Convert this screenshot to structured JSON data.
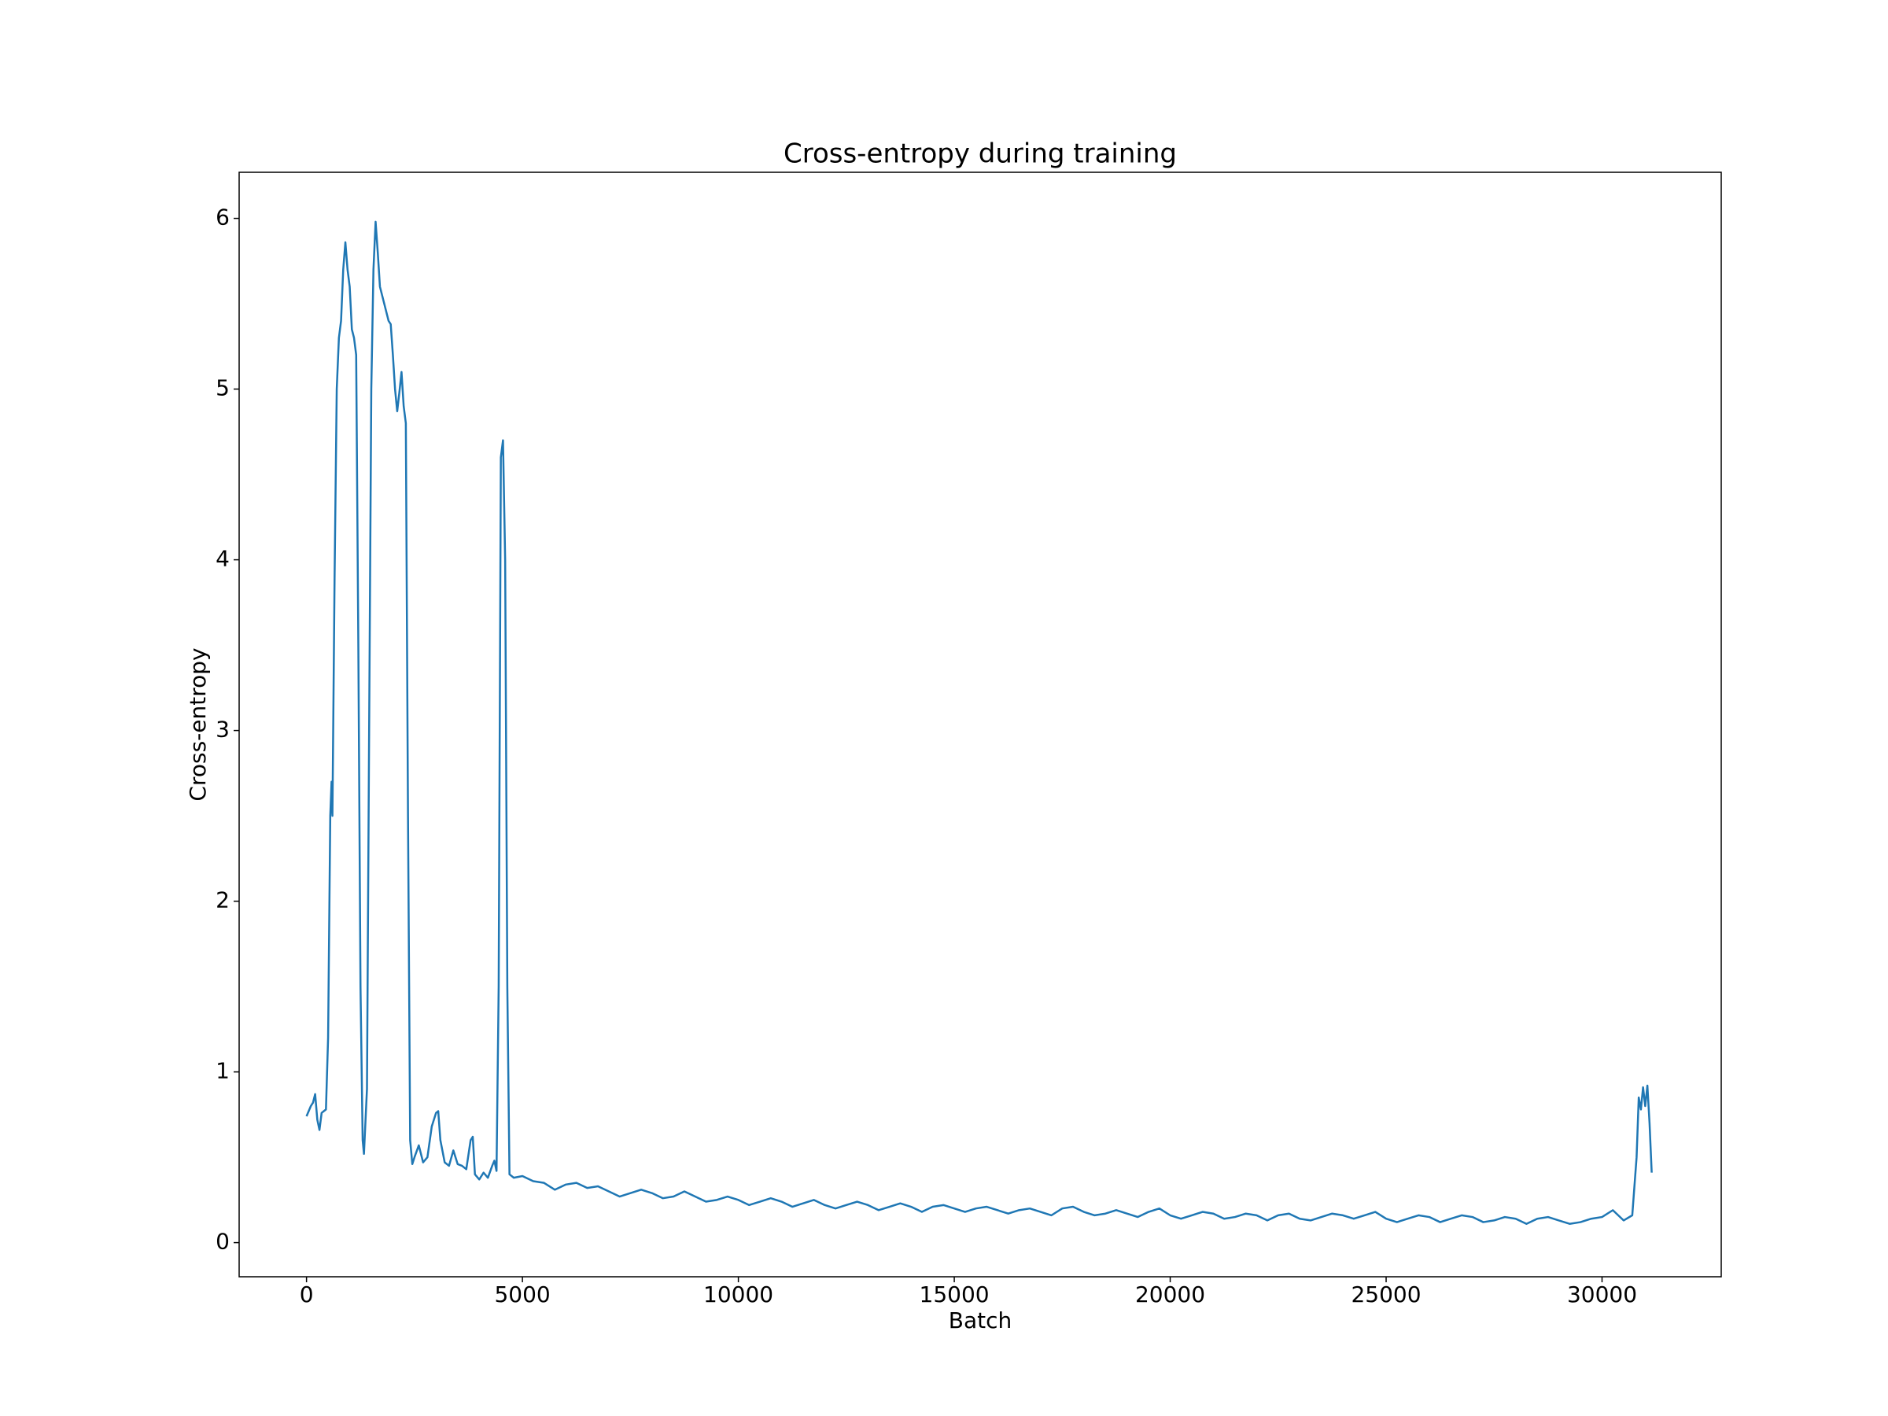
{
  "chart_data": {
    "type": "line",
    "title": "Cross-entropy during training",
    "x_label": "Batch",
    "y_label": "Cross-entropy",
    "color": "#1f77b4",
    "x": [
      0,
      100,
      150,
      200,
      250,
      300,
      350,
      400,
      450,
      500,
      550,
      580,
      600,
      650,
      700,
      750,
      800,
      850,
      900,
      950,
      1000,
      1050,
      1100,
      1150,
      1200,
      1250,
      1300,
      1330,
      1400,
      1450,
      1500,
      1550,
      1600,
      1650,
      1700,
      1800,
      1900,
      1950,
      2000,
      2050,
      2100,
      2150,
      2200,
      2250,
      2300,
      2350,
      2400,
      2450,
      2500,
      2600,
      2700,
      2800,
      2900,
      3000,
      3050,
      3100,
      3200,
      3300,
      3400,
      3500,
      3600,
      3700,
      3800,
      3850,
      3900,
      4000,
      4100,
      4200,
      4300,
      4350,
      4400,
      4450,
      4500,
      4550,
      4600,
      4650,
      4700,
      4800,
      5000,
      5250,
      5500,
      5750,
      6000,
      6250,
      6500,
      6750,
      7000,
      7250,
      7500,
      7750,
      8000,
      8250,
      8500,
      8750,
      9000,
      9250,
      9500,
      9750,
      10000,
      10250,
      10500,
      10750,
      11000,
      11250,
      11500,
      11750,
      12000,
      12250,
      12500,
      12750,
      13000,
      13250,
      13500,
      13750,
      14000,
      14250,
      14500,
      14750,
      15000,
      15250,
      15500,
      15750,
      16000,
      16250,
      16500,
      16750,
      17000,
      17250,
      17500,
      17750,
      18000,
      18250,
      18500,
      18750,
      19000,
      19250,
      19500,
      19750,
      20000,
      20250,
      20500,
      20750,
      21000,
      21250,
      21500,
      21750,
      22000,
      22250,
      22500,
      22750,
      23000,
      23250,
      23500,
      23750,
      24000,
      24250,
      24500,
      24750,
      25000,
      25250,
      25500,
      25750,
      26000,
      26250,
      26500,
      26750,
      27000,
      27250,
      27500,
      27750,
      28000,
      28250,
      28500,
      28750,
      29000,
      29250,
      29500,
      29750,
      30000,
      30250,
      30500,
      30700,
      30800,
      30850,
      30900,
      30950,
      31000,
      31050,
      31100,
      31150
    ],
    "values": [
      0.74,
      0.8,
      0.82,
      0.87,
      0.72,
      0.66,
      0.76,
      0.77,
      0.78,
      1.2,
      2.5,
      2.7,
      2.5,
      3.9,
      5.0,
      5.3,
      5.4,
      5.7,
      5.86,
      5.7,
      5.6,
      5.35,
      5.3,
      5.2,
      3.5,
      1.5,
      0.6,
      0.52,
      0.9,
      3.0,
      5.0,
      5.7,
      5.98,
      5.8,
      5.6,
      5.5,
      5.4,
      5.38,
      5.2,
      5.0,
      4.87,
      4.98,
      5.1,
      4.9,
      4.8,
      2.5,
      0.6,
      0.46,
      0.5,
      0.57,
      0.47,
      0.5,
      0.68,
      0.76,
      0.77,
      0.6,
      0.47,
      0.45,
      0.54,
      0.46,
      0.45,
      0.43,
      0.6,
      0.62,
      0.4,
      0.37,
      0.41,
      0.38,
      0.45,
      0.48,
      0.42,
      1.5,
      4.6,
      4.7,
      4.0,
      1.5,
      0.4,
      0.38,
      0.39,
      0.36,
      0.35,
      0.31,
      0.34,
      0.35,
      0.32,
      0.33,
      0.3,
      0.27,
      0.29,
      0.31,
      0.29,
      0.26,
      0.27,
      0.3,
      0.27,
      0.24,
      0.25,
      0.27,
      0.25,
      0.22,
      0.24,
      0.26,
      0.24,
      0.21,
      0.23,
      0.25,
      0.22,
      0.2,
      0.22,
      0.24,
      0.22,
      0.19,
      0.21,
      0.23,
      0.21,
      0.18,
      0.21,
      0.22,
      0.2,
      0.18,
      0.2,
      0.21,
      0.19,
      0.17,
      0.19,
      0.2,
      0.18,
      0.16,
      0.2,
      0.21,
      0.18,
      0.16,
      0.17,
      0.19,
      0.17,
      0.15,
      0.18,
      0.2,
      0.16,
      0.14,
      0.16,
      0.18,
      0.17,
      0.14,
      0.15,
      0.17,
      0.16,
      0.13,
      0.16,
      0.17,
      0.14,
      0.13,
      0.15,
      0.17,
      0.16,
      0.14,
      0.16,
      0.18,
      0.14,
      0.12,
      0.14,
      0.16,
      0.15,
      0.12,
      0.14,
      0.16,
      0.15,
      0.12,
      0.13,
      0.15,
      0.14,
      0.11,
      0.14,
      0.15,
      0.13,
      0.11,
      0.12,
      0.14,
      0.15,
      0.19,
      0.13,
      0.16,
      0.5,
      0.85,
      0.78,
      0.91,
      0.8,
      0.92,
      0.7,
      0.41
    ],
    "xlim": [
      -1560,
      32760
    ],
    "ylim": [
      -0.2,
      6.27
    ],
    "xticks": [
      0,
      5000,
      10000,
      15000,
      20000,
      25000,
      30000
    ],
    "yticks": [
      0,
      1,
      2,
      3,
      4,
      5,
      6
    ]
  }
}
